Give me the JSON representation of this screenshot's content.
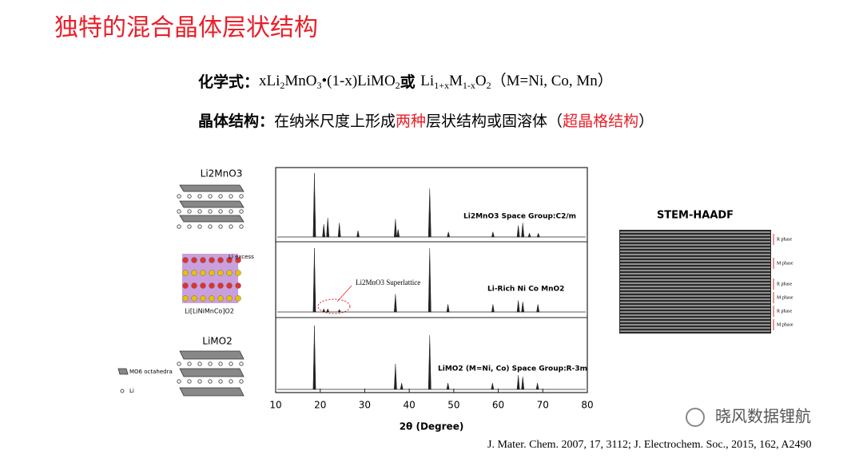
{
  "header": {
    "title": "独特的混合晶体层状结构"
  },
  "formula_line": [
    {
      "text": "化学式：",
      "bold": true
    },
    {
      "text": "xLi"
    },
    {
      "text": "2",
      "sub": true
    },
    {
      "text": "MnO"
    },
    {
      "text": "3",
      "sub": true
    },
    {
      "text": "•(1-x)LiMO"
    },
    {
      "text": "2",
      "sub": true
    },
    {
      "text": "或 ",
      "bold": true
    },
    {
      "text": "Li"
    },
    {
      "text": "1+x",
      "sub": true
    },
    {
      "text": "M"
    },
    {
      "text": "1-x",
      "sub": true
    },
    {
      "text": "O"
    },
    {
      "text": "2",
      "sub": true
    },
    {
      "text": "（M=Ni, Co, Mn）"
    }
  ],
  "structure_line": [
    {
      "text": "晶体结构：",
      "bold": true
    },
    {
      "text": "在纳米尺度上形成"
    },
    {
      "text": "两种",
      "color": "#e8202a"
    },
    {
      "text": "层状结构或固溶体（"
    },
    {
      "text": "超晶格结构",
      "color": "#e8202a"
    },
    {
      "text": "）"
    }
  ],
  "structures": {
    "top_label": "Li2MnO3",
    "li_excess": "Li excess",
    "middle_label": "Li[LiNiMnCo]O2",
    "bottom_label": "LiMO2",
    "legend": [
      "MO6 octahedra",
      "Li"
    ]
  },
  "chart_data": {
    "type": "stick",
    "xlabel": "2θ (Degree)",
    "xlim": [
      10,
      80
    ],
    "xticks": [
      10,
      20,
      30,
      40,
      50,
      60,
      70,
      80
    ],
    "annotation": "Li2MnO3 Superlattice",
    "series": [
      {
        "name": "Li2MnO3 Space Group:C2/m",
        "color": "#222222",
        "x": [
          18.7,
          20.8,
          21.7,
          24.3,
          28.5,
          36.9,
          37.5,
          44.6,
          48.8,
          58.8,
          64.5,
          65.5,
          67,
          69
        ],
        "values": [
          100,
          20,
          30,
          22,
          10,
          28,
          12,
          76,
          8,
          8,
          18,
          22,
          6,
          6
        ]
      },
      {
        "name": "Li-Rich Ni Co MnO2",
        "color": "#222222",
        "x": [
          18.7,
          20.8,
          21.7,
          24.3,
          36.9,
          44.6,
          48.7,
          58.8,
          64.5,
          65.5,
          68.9
        ],
        "values": [
          100,
          5,
          5,
          4,
          28,
          100,
          12,
          12,
          18,
          16,
          12
        ]
      },
      {
        "name": "LiMO2 (M=Ni, Co) Space Group:R-3m",
        "color": "#222222",
        "x": [
          18.7,
          36.9,
          38.3,
          44.6,
          48.7,
          58.7,
          64.5,
          65.5,
          68.8
        ],
        "values": [
          100,
          40,
          10,
          85,
          10,
          10,
          22,
          20,
          10
        ]
      }
    ]
  },
  "stem": {
    "title": "STEM-HAADF",
    "phases": [
      "R phase",
      "M phase",
      "R phase",
      "M phase",
      "R phase",
      "M phase"
    ]
  },
  "watermark": "晓风数据锂航",
  "citation": "J. Mater. Chem. 2007, 17, 3112; J. Electrochem. Soc., 2015, 162, A2490"
}
